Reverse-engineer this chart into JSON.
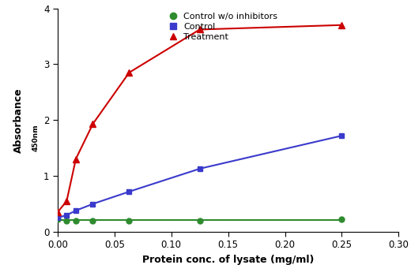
{
  "green_x": [
    0.0,
    0.008,
    0.016,
    0.031,
    0.063,
    0.125,
    0.25
  ],
  "green_y": [
    0.22,
    0.2,
    0.2,
    0.2,
    0.2,
    0.2,
    0.22
  ],
  "blue_x": [
    0.0,
    0.008,
    0.016,
    0.031,
    0.063,
    0.125,
    0.25
  ],
  "blue_y": [
    0.25,
    0.3,
    0.38,
    0.5,
    0.72,
    1.13,
    1.72
  ],
  "red_x": [
    0.0,
    0.008,
    0.016,
    0.031,
    0.063,
    0.125,
    0.25
  ],
  "red_y": [
    0.35,
    0.55,
    1.3,
    1.93,
    2.85,
    3.62,
    3.7
  ],
  "green_color": "#2e8b2e",
  "blue_color": "#3a3acc",
  "red_color": "#cc0000",
  "legend_labels": [
    "Control w/o inhibitors",
    "Control",
    "Treatment"
  ],
  "xlabel": "Protein conc. of lysate (mg/ml)",
  "ylabel_main": "Absorbance",
  "ylabel_sub": "450nm",
  "xlim": [
    0,
    0.3
  ],
  "ylim": [
    0,
    4
  ],
  "yticks": [
    0,
    1,
    2,
    3,
    4
  ],
  "xticks": [
    0.0,
    0.05,
    0.1,
    0.15,
    0.2,
    0.25,
    0.3
  ]
}
